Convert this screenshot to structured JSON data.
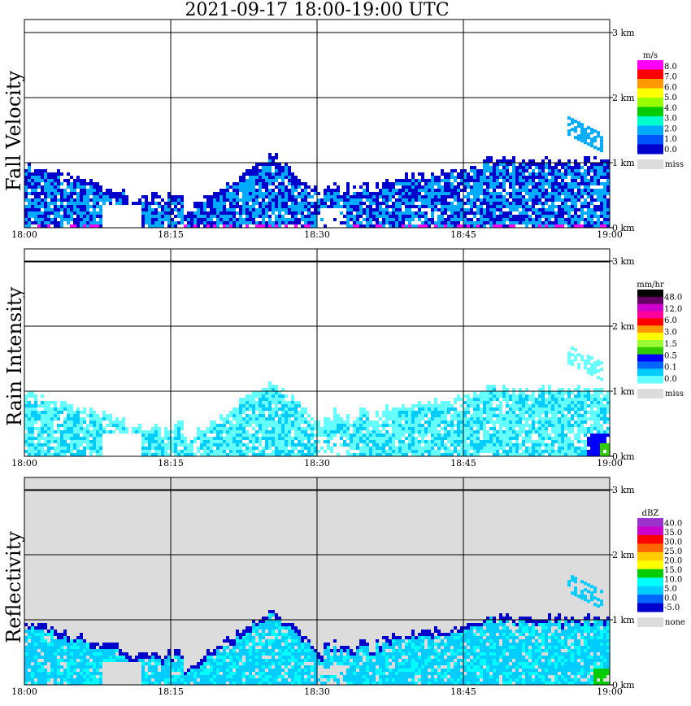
{
  "title": "2021-09-17   18:00-19:00 UTC",
  "colors": {
    "gap_gray": "#dcdcdc",
    "grid": "#000000"
  },
  "chart_data": [
    {
      "type": "heatmap",
      "id": "fall_velocity",
      "ylabel": "Fall Velocity",
      "x_ticks": [
        "18:00",
        "18:15",
        "18:30",
        "18:45",
        "19:00"
      ],
      "y_ticks": [
        "0 km",
        "1 km",
        "2 km",
        "3 km"
      ],
      "xlim": [
        "18:00",
        "19:00"
      ],
      "ylim_km": [
        0,
        3.2
      ],
      "grid": true,
      "background": "#ffffff",
      "legend": {
        "unit": "m/s",
        "labels": [
          "8.0",
          "7.0",
          "6.0",
          "5.0",
          "4.0",
          "3.0",
          "2.0",
          "1.0",
          "0.0"
        ],
        "colors": [
          "#ff00ff",
          "#ff0000",
          "#ff9900",
          "#ffff00",
          "#99ff00",
          "#00cc00",
          "#00ffcc",
          "#00aaff",
          "#0055ff",
          "#0000cc"
        ],
        "miss_label": "miss",
        "miss_color": "#dcdcdc"
      }
    },
    {
      "type": "heatmap",
      "id": "rain_intensity",
      "ylabel": "Rain Intensity",
      "x_ticks": [
        "18:00",
        "18:15",
        "18:30",
        "18:45",
        "19:00"
      ],
      "y_ticks": [
        "0 km",
        "1 km",
        "2 km",
        "3 km"
      ],
      "xlim": [
        "18:00",
        "19:00"
      ],
      "ylim_km": [
        0,
        3.2
      ],
      "grid": true,
      "background": "#ffffff",
      "legend": {
        "unit": "mm/hr",
        "labels": [
          "48.0",
          "12.0",
          "6.0",
          "3.0",
          "1.5",
          "0.5",
          "0.1",
          "0.0"
        ],
        "colors": [
          "#000000",
          "#660066",
          "#cc00cc",
          "#ff0099",
          "#ff0000",
          "#ff9900",
          "#ffff00",
          "#99ff33",
          "#33cc00",
          "#0000ff",
          "#0066ff",
          "#00ccff",
          "#66ffff"
        ],
        "miss_label": "miss",
        "miss_color": "#dcdcdc"
      }
    },
    {
      "type": "heatmap",
      "id": "reflectivity",
      "ylabel": "Reflectivity",
      "x_ticks": [
        "18:00",
        "18:15",
        "18:30",
        "18:45",
        "19:00"
      ],
      "y_ticks": [
        "0 km",
        "1 km",
        "2 km",
        "3 km"
      ],
      "xlim": [
        "18:00",
        "19:00"
      ],
      "ylim_km": [
        0,
        3.2
      ],
      "grid": true,
      "background": "#dcdcdc",
      "legend": {
        "unit": "dBZ",
        "labels": [
          "40.0",
          "35.0",
          "30.0",
          "25.0",
          "20.0",
          "15.0",
          "10.0",
          "5.0",
          "0.0",
          "-5.0"
        ],
        "colors": [
          "#9933cc",
          "#cc00cc",
          "#ff0000",
          "#ff6600",
          "#ffcc00",
          "#ffff00",
          "#00cc00",
          "#00ffff",
          "#00ccff",
          "#0066ff",
          "#0000cc"
        ],
        "miss_label": "none",
        "miss_color": "#dcdcdc"
      }
    }
  ]
}
